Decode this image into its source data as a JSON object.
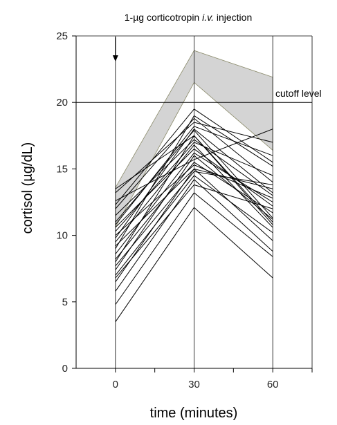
{
  "chart_data": {
    "type": "line",
    "title": "1-µg corticotropin i.v. injection",
    "title_parts": {
      "before": "1-µg corticotropin ",
      "italic": "i.v.",
      "after": " injection"
    },
    "xlabel": "time (minutes)",
    "ylabel": "cortisol (µg/dL)",
    "x": [
      0,
      30,
      60
    ],
    "x_ticks": [
      "0",
      "30",
      "60"
    ],
    "y_ticks": [
      "0",
      "5",
      "10",
      "15",
      "20",
      "25"
    ],
    "xlim": [
      -15,
      75
    ],
    "ylim": [
      0,
      25
    ],
    "grid": "vertical",
    "cutoff": {
      "value": 20,
      "label": "cutoff level"
    },
    "reference_band": {
      "upper": [
        13.6,
        23.9,
        21.9
      ],
      "lower": [
        10.6,
        21.5,
        16.4
      ],
      "color": "#d4d4d4"
    },
    "injection_marker_x": 0,
    "line_color": "#000000",
    "series": [
      {
        "values": [
          13.5,
          17.5,
          11.0
        ]
      },
      {
        "values": [
          13.2,
          18.5,
          17.0
        ]
      },
      {
        "values": [
          12.6,
          15.7,
          18.0
        ]
      },
      {
        "values": [
          12.3,
          19.5,
          15.5
        ]
      },
      {
        "values": [
          12.0,
          18.8,
          14.0
        ]
      },
      {
        "values": [
          11.5,
          17.2,
          13.0
        ]
      },
      {
        "values": [
          11.0,
          17.9,
          11.3
        ]
      },
      {
        "values": [
          10.8,
          18.2,
          16.0
        ]
      },
      {
        "values": [
          10.6,
          16.5,
          12.2
        ]
      },
      {
        "values": [
          10.3,
          17.0,
          14.5
        ]
      },
      {
        "values": [
          10.0,
          15.3,
          12.8
        ]
      },
      {
        "values": [
          9.8,
          18.0,
          13.2
        ]
      },
      {
        "values": [
          9.5,
          16.8,
          10.6
        ]
      },
      {
        "values": [
          9.2,
          15.0,
          13.5
        ]
      },
      {
        "values": [
          9.0,
          19.0,
          15.2
        ]
      },
      {
        "values": [
          8.6,
          16.2,
          12.5
        ]
      },
      {
        "values": [
          8.2,
          15.5,
          11.7
        ]
      },
      {
        "values": [
          8.0,
          17.5,
          10.8
        ]
      },
      {
        "values": [
          7.7,
          14.8,
          13.8
        ]
      },
      {
        "values": [
          7.4,
          16.0,
          11.2
        ]
      },
      {
        "values": [
          7.0,
          14.5,
          10.2
        ]
      },
      {
        "values": [
          6.8,
          13.8,
          12.0
        ]
      },
      {
        "values": [
          6.5,
          15.0,
          9.6
        ]
      },
      {
        "values": [
          5.8,
          14.2,
          8.8
        ]
      },
      {
        "values": [
          4.8,
          13.2,
          8.4
        ]
      },
      {
        "values": [
          3.5,
          12.1,
          6.8
        ]
      }
    ]
  }
}
